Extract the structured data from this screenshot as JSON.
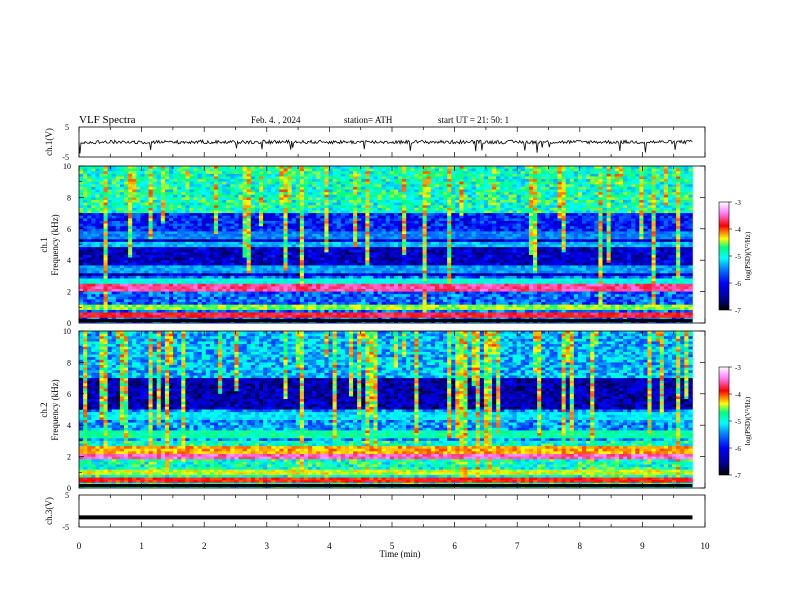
{
  "header": {
    "title": "VLF  Spectra",
    "date": "Feb. 4.  , 2024",
    "station": "station= ATH",
    "start_ut": "start  UT  =    21: 50: 1"
  },
  "colors": {
    "colormap": [
      "#000000",
      "#00008b",
      "#0000ff",
      "#0080ff",
      "#00ffff",
      "#00ff80",
      "#ffff00",
      "#ff0000",
      "#ff80ff",
      "#ffffff"
    ],
    "trace": "#000000"
  },
  "chart_data": [
    {
      "type": "line",
      "panel": "ch1-voltage",
      "ylabel": "ch.1(V)",
      "ylim": [
        -5,
        5
      ],
      "yticks": [
        "5",
        "-5"
      ],
      "x_range": [
        0,
        9.8
      ],
      "y_baseline": 0,
      "noise_amplitude": 0.6
    },
    {
      "type": "heatmap",
      "panel": "ch1-spectrogram",
      "ylabel_line1": "ch.1",
      "ylabel_line2": "Frequency  (kHz)",
      "ylim": [
        0,
        10
      ],
      "yticks": [
        "0",
        "2",
        "4",
        "6",
        "8",
        "10"
      ],
      "x_range": [
        0,
        9.8
      ],
      "colorbar": {
        "label": "log(PSD)(V²/Hz)",
        "range": [
          -7,
          -3
        ],
        "ticks": [
          "-3",
          "-4",
          "-5",
          "-6",
          "-7"
        ]
      },
      "bands_kHz": [
        {
          "f": 0.5,
          "level": -3.8
        },
        {
          "f": 1.0,
          "level": -4.5
        },
        {
          "f": 2.2,
          "level": -3.6
        },
        {
          "f": 2.6,
          "level": -5.0
        },
        {
          "f": 3.4,
          "level": -5.4
        },
        {
          "f": 5.0,
          "level": -5.3
        },
        {
          "f": 5.6,
          "level": -5.5
        }
      ]
    },
    {
      "type": "heatmap",
      "panel": "ch2-spectrogram",
      "ylabel_line1": "ch.2",
      "ylabel_line2": "Frequency  (kHz)",
      "ylim": [
        0,
        10
      ],
      "yticks": [
        "0",
        "2",
        "4",
        "6",
        "8",
        "10"
      ],
      "x_range": [
        0,
        9.8
      ],
      "colorbar": {
        "label": "log(PSD)(V²/Hz)",
        "range": [
          -7,
          -3
        ],
        "ticks": [
          "-3",
          "-4",
          "-5",
          "-6",
          "-7"
        ]
      },
      "bands_kHz": [
        {
          "f": 0.5,
          "level": -3.9
        },
        {
          "f": 1.0,
          "level": -4.4
        },
        {
          "f": 2.0,
          "level": -3.5
        },
        {
          "f": 2.4,
          "level": -4.2
        },
        {
          "f": 3.4,
          "level": -4.8
        },
        {
          "f": 4.6,
          "level": -5.2
        }
      ]
    },
    {
      "type": "line",
      "panel": "ch3-voltage",
      "ylabel": "ch.3(V)",
      "ylim": [
        -5,
        5
      ],
      "yticks": [
        "5",
        "-5"
      ],
      "x_range": [
        0,
        9.8
      ],
      "y_baseline": -2
    }
  ],
  "xaxis": {
    "label": "Time  (min)",
    "ticks": [
      "0",
      "1",
      "2",
      "3",
      "4",
      "5",
      "6",
      "7",
      "8",
      "9",
      "10"
    ],
    "range": [
      0,
      10
    ]
  }
}
